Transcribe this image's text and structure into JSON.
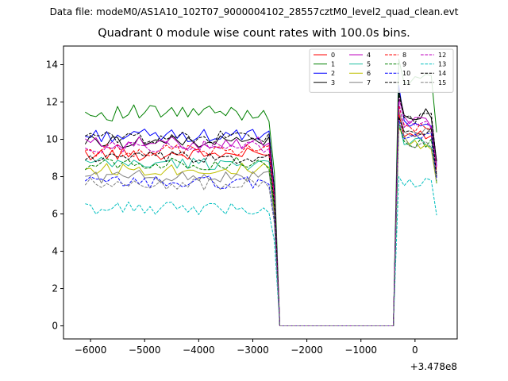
{
  "figure": {
    "suptitle": "Data file: modeM0/AS1A10_102T07_9000004102_28557cztM0_level2_quad_clean.evt"
  },
  "chart_data": {
    "type": "line",
    "title": "Quadrant 0 module wise count rates with 100.0s bins.",
    "xlabel": "",
    "ylabel": "",
    "x_offset_text": "+3.478e8",
    "xlim": [
      -6500,
      780
    ],
    "ylim": [
      -0.7,
      15
    ],
    "x_ticks": [
      -6000,
      -5000,
      -4000,
      -3000,
      -2000,
      -1000,
      0
    ],
    "x_tick_labels": [
      "−6000",
      "−5000",
      "−4000",
      "−3000",
      "−2000",
      "−1000",
      "0"
    ],
    "y_ticks": [
      0,
      2,
      4,
      6,
      8,
      10,
      12,
      14
    ],
    "y_tick_labels": [
      "0",
      "2",
      "4",
      "6",
      "8",
      "10",
      "12",
      "14"
    ],
    "grid": false,
    "legend": {
      "location": "upper-right",
      "columns": 4
    },
    "bin_seconds": 100,
    "segments": {
      "seg1_start": -6100,
      "seg1_end": -2600,
      "gap_start": -2500,
      "gap_end": -400,
      "seg2_start": -300,
      "seg2_end": 480
    },
    "series": [
      {
        "name": "0",
        "color": "#ff0000",
        "dash": "solid",
        "seg1_mean": 9.2,
        "seg2_mean": 10.2,
        "seg2_peak": 11.4
      },
      {
        "name": "1",
        "color": "#008000",
        "dash": "solid",
        "seg1_mean": 11.4,
        "seg2_mean": 13.3,
        "seg2_peak": 14.3
      },
      {
        "name": "2",
        "color": "#0000ff",
        "dash": "solid",
        "seg1_mean": 10.2,
        "seg2_mean": 11.0,
        "seg2_peak": 12.9
      },
      {
        "name": "3",
        "color": "#000000",
        "dash": "solid",
        "seg1_mean": 9.9,
        "seg2_mean": 11.3,
        "seg2_peak": 12.6
      },
      {
        "name": "4",
        "color": "#bf00bf",
        "dash": "solid",
        "seg1_mean": 9.8,
        "seg2_mean": 10.9,
        "seg2_peak": 12.2
      },
      {
        "name": "5",
        "color": "#1fbfa0",
        "dash": "solid",
        "seg1_mean": 8.7,
        "seg2_mean": 9.9,
        "seg2_peak": 10.9
      },
      {
        "name": "6",
        "color": "#bfbf00",
        "dash": "solid",
        "seg1_mean": 8.4,
        "seg2_mean": 9.8,
        "seg2_peak": 10.6
      },
      {
        "name": "7",
        "color": "#808080",
        "dash": "solid",
        "seg1_mean": 8.0,
        "seg2_mean": 10.3,
        "seg2_peak": 11.6
      },
      {
        "name": "8",
        "color": "#ff0000",
        "dash": "dashed",
        "seg1_mean": 9.4,
        "seg2_mean": 10.6,
        "seg2_peak": 11.8
      },
      {
        "name": "9",
        "color": "#008000",
        "dash": "dashed",
        "seg1_mean": 8.7,
        "seg2_mean": 9.8,
        "seg2_peak": 10.8
      },
      {
        "name": "10",
        "color": "#0000ff",
        "dash": "dashed",
        "seg1_mean": 7.7,
        "seg2_mean": 10.1,
        "seg2_peak": 11.1
      },
      {
        "name": "11",
        "color": "#000000",
        "dash": "dashed",
        "seg1_mean": 10.1,
        "seg2_mean": 11.2,
        "seg2_peak": 12.4
      },
      {
        "name": "12",
        "color": "#bf00bf",
        "dash": "dashed",
        "seg1_mean": 9.6,
        "seg2_mean": 10.9,
        "seg2_peak": 12.0
      },
      {
        "name": "13",
        "color": "#00bfbf",
        "dash": "dashed",
        "seg1_mean": 6.3,
        "seg2_mean": 7.6,
        "seg2_peak": 8.0
      },
      {
        "name": "14",
        "color": "#000000",
        "dash": "dashed",
        "seg1_mean": 9.0,
        "seg2_mean": 10.3,
        "seg2_peak": 11.2
      },
      {
        "name": "15",
        "color": "#808080",
        "dash": "dashed",
        "seg1_mean": 7.6,
        "seg2_mean": 9.9,
        "seg2_peak": 10.9
      }
    ]
  }
}
